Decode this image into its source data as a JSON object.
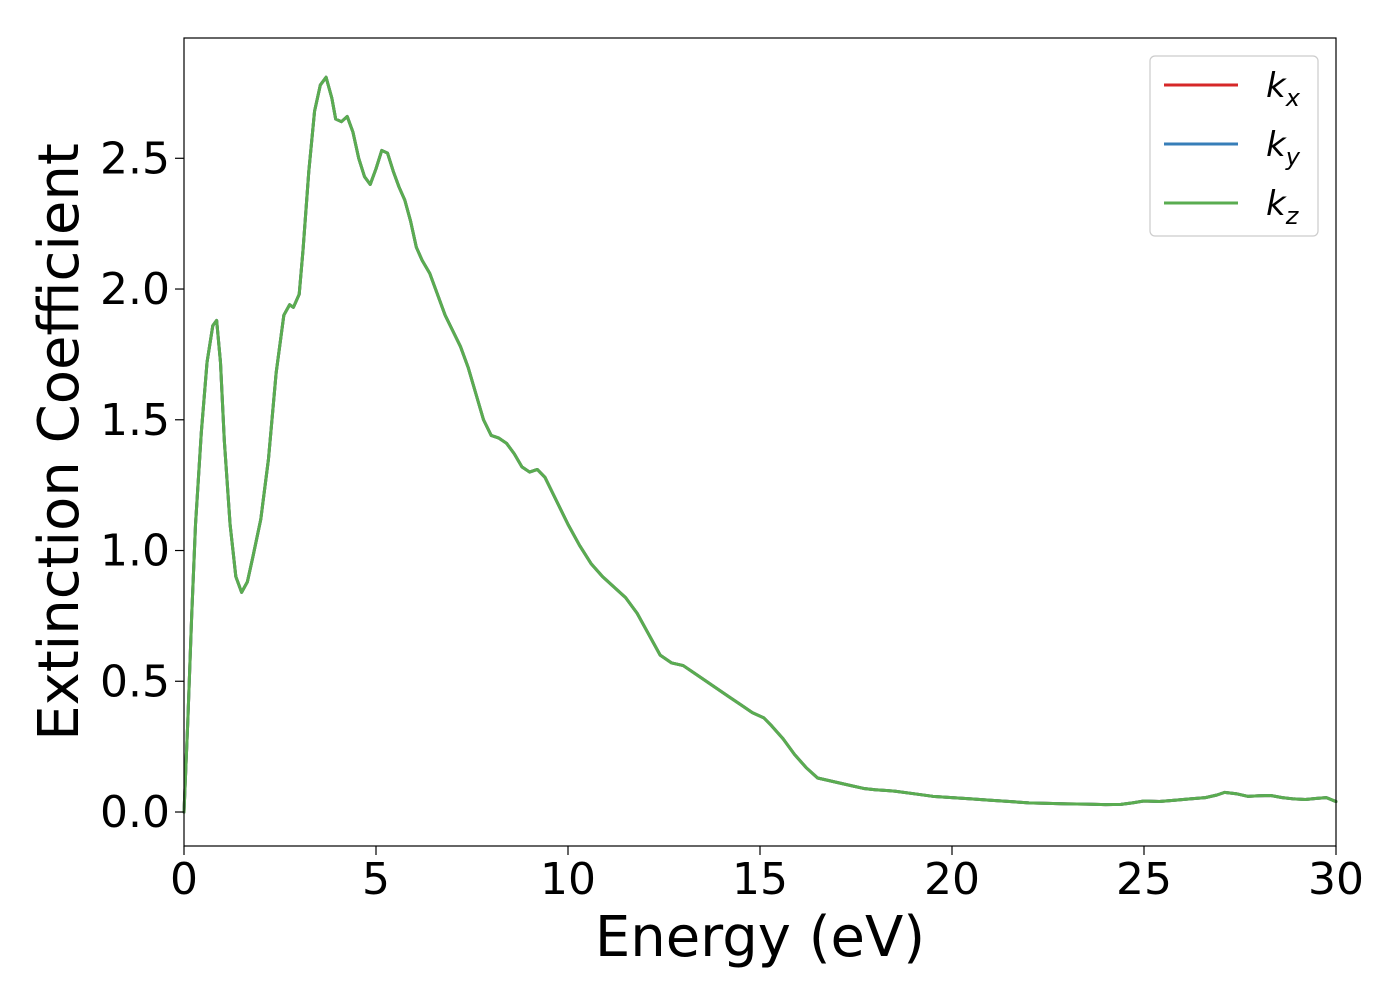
{
  "chart_data": {
    "type": "line",
    "title": "",
    "xlabel": "Energy (eV)",
    "ylabel": "Extinction Coefficient",
    "xlim": [
      0,
      30
    ],
    "ylim": [
      -0.13,
      2.96
    ],
    "xticks": [
      0,
      5,
      10,
      15,
      20,
      25,
      30
    ],
    "xtick_labels": [
      "0",
      "5",
      "10",
      "15",
      "20",
      "25",
      "30"
    ],
    "yticks": [
      0.0,
      0.5,
      1.0,
      1.5,
      2.0,
      2.5
    ],
    "ytick_labels": [
      "0.0",
      "0.5",
      "1.0",
      "1.5",
      "2.0",
      "2.5"
    ],
    "grid": false,
    "legend_position": "top-right",
    "x": [
      0.0,
      0.1,
      0.2,
      0.3,
      0.45,
      0.6,
      0.75,
      0.85,
      0.95,
      1.05,
      1.2,
      1.35,
      1.5,
      1.65,
      1.8,
      2.0,
      2.2,
      2.4,
      2.6,
      2.75,
      2.85,
      3.0,
      3.1,
      3.25,
      3.4,
      3.55,
      3.7,
      3.85,
      3.95,
      4.1,
      4.25,
      4.4,
      4.55,
      4.7,
      4.85,
      5.0,
      5.15,
      5.3,
      5.45,
      5.6,
      5.75,
      5.9,
      6.05,
      6.2,
      6.4,
      6.6,
      6.8,
      7.0,
      7.2,
      7.4,
      7.6,
      7.8,
      8.0,
      8.2,
      8.4,
      8.6,
      8.8,
      9.0,
      9.2,
      9.4,
      9.6,
      9.8,
      10.0,
      10.3,
      10.6,
      10.9,
      11.2,
      11.5,
      11.8,
      12.1,
      12.4,
      12.7,
      13.0,
      13.3,
      13.6,
      13.9,
      14.2,
      14.5,
      14.8,
      15.1,
      15.3,
      15.6,
      15.9,
      16.2,
      16.5,
      16.8,
      17.1,
      17.4,
      17.7,
      18.0,
      18.5,
      19.0,
      19.5,
      20.0,
      20.5,
      21.0,
      21.5,
      22.0,
      22.5,
      23.0,
      23.5,
      24.0,
      24.4,
      24.7,
      25.0,
      25.4,
      25.8,
      26.2,
      26.6,
      26.9,
      27.1,
      27.4,
      27.7,
      28.0,
      28.3,
      28.6,
      28.9,
      29.2,
      29.5,
      29.75,
      30.0
    ],
    "series": [
      {
        "name": "k_x",
        "color": "#d62728",
        "values": [
          0.0,
          0.35,
          0.75,
          1.1,
          1.45,
          1.72,
          1.86,
          1.88,
          1.72,
          1.42,
          1.1,
          0.9,
          0.84,
          0.88,
          0.98,
          1.12,
          1.35,
          1.68,
          1.9,
          1.94,
          1.93,
          1.98,
          2.15,
          2.45,
          2.68,
          2.78,
          2.81,
          2.73,
          2.65,
          2.64,
          2.66,
          2.6,
          2.5,
          2.43,
          2.4,
          2.46,
          2.53,
          2.52,
          2.45,
          2.39,
          2.34,
          2.26,
          2.16,
          2.11,
          2.06,
          1.98,
          1.9,
          1.84,
          1.78,
          1.7,
          1.6,
          1.5,
          1.44,
          1.43,
          1.41,
          1.37,
          1.32,
          1.3,
          1.31,
          1.28,
          1.22,
          1.16,
          1.1,
          1.02,
          0.95,
          0.9,
          0.86,
          0.82,
          0.76,
          0.68,
          0.6,
          0.57,
          0.56,
          0.53,
          0.5,
          0.47,
          0.44,
          0.41,
          0.38,
          0.36,
          0.33,
          0.28,
          0.22,
          0.17,
          0.13,
          0.12,
          0.11,
          0.1,
          0.09,
          0.085,
          0.08,
          0.07,
          0.06,
          0.055,
          0.05,
          0.045,
          0.04,
          0.035,
          0.033,
          0.031,
          0.03,
          0.028,
          0.029,
          0.035,
          0.042,
          0.04,
          0.045,
          0.05,
          0.055,
          0.065,
          0.075,
          0.07,
          0.06,
          0.062,
          0.063,
          0.055,
          0.05,
          0.048,
          0.052,
          0.055,
          0.04
        ]
      },
      {
        "name": "k_y",
        "color": "#377eb8",
        "values": [
          0.0,
          0.35,
          0.75,
          1.1,
          1.45,
          1.72,
          1.86,
          1.88,
          1.72,
          1.42,
          1.1,
          0.9,
          0.84,
          0.88,
          0.98,
          1.12,
          1.35,
          1.68,
          1.9,
          1.94,
          1.93,
          1.98,
          2.15,
          2.45,
          2.68,
          2.78,
          2.81,
          2.73,
          2.65,
          2.64,
          2.66,
          2.6,
          2.5,
          2.43,
          2.4,
          2.46,
          2.53,
          2.52,
          2.45,
          2.39,
          2.34,
          2.26,
          2.16,
          2.11,
          2.06,
          1.98,
          1.9,
          1.84,
          1.78,
          1.7,
          1.6,
          1.5,
          1.44,
          1.43,
          1.41,
          1.37,
          1.32,
          1.3,
          1.31,
          1.28,
          1.22,
          1.16,
          1.1,
          1.02,
          0.95,
          0.9,
          0.86,
          0.82,
          0.76,
          0.68,
          0.6,
          0.57,
          0.56,
          0.53,
          0.5,
          0.47,
          0.44,
          0.41,
          0.38,
          0.36,
          0.33,
          0.28,
          0.22,
          0.17,
          0.13,
          0.12,
          0.11,
          0.1,
          0.09,
          0.085,
          0.08,
          0.07,
          0.06,
          0.055,
          0.05,
          0.045,
          0.04,
          0.035,
          0.033,
          0.031,
          0.03,
          0.028,
          0.029,
          0.035,
          0.042,
          0.04,
          0.045,
          0.05,
          0.055,
          0.065,
          0.075,
          0.07,
          0.06,
          0.062,
          0.063,
          0.055,
          0.05,
          0.048,
          0.052,
          0.055,
          0.04
        ]
      },
      {
        "name": "k_z",
        "color": "#5aac50",
        "values": [
          0.0,
          0.35,
          0.75,
          1.1,
          1.45,
          1.72,
          1.86,
          1.88,
          1.72,
          1.42,
          1.1,
          0.9,
          0.84,
          0.88,
          0.98,
          1.12,
          1.35,
          1.68,
          1.9,
          1.94,
          1.93,
          1.98,
          2.15,
          2.45,
          2.68,
          2.78,
          2.81,
          2.73,
          2.65,
          2.64,
          2.66,
          2.6,
          2.5,
          2.43,
          2.4,
          2.46,
          2.53,
          2.52,
          2.45,
          2.39,
          2.34,
          2.26,
          2.16,
          2.11,
          2.06,
          1.98,
          1.9,
          1.84,
          1.78,
          1.7,
          1.6,
          1.5,
          1.44,
          1.43,
          1.41,
          1.37,
          1.32,
          1.3,
          1.31,
          1.28,
          1.22,
          1.16,
          1.1,
          1.02,
          0.95,
          0.9,
          0.86,
          0.82,
          0.76,
          0.68,
          0.6,
          0.57,
          0.56,
          0.53,
          0.5,
          0.47,
          0.44,
          0.41,
          0.38,
          0.36,
          0.33,
          0.28,
          0.22,
          0.17,
          0.13,
          0.12,
          0.11,
          0.1,
          0.09,
          0.085,
          0.08,
          0.07,
          0.06,
          0.055,
          0.05,
          0.045,
          0.04,
          0.035,
          0.033,
          0.031,
          0.03,
          0.028,
          0.029,
          0.035,
          0.042,
          0.04,
          0.045,
          0.05,
          0.055,
          0.065,
          0.075,
          0.07,
          0.06,
          0.062,
          0.063,
          0.055,
          0.05,
          0.048,
          0.052,
          0.055,
          0.04
        ]
      }
    ],
    "legend": [
      {
        "base": "k",
        "sub": "x",
        "color": "#d62728"
      },
      {
        "base": "k",
        "sub": "y",
        "color": "#377eb8"
      },
      {
        "base": "k",
        "sub": "z",
        "color": "#5aac50"
      }
    ]
  }
}
